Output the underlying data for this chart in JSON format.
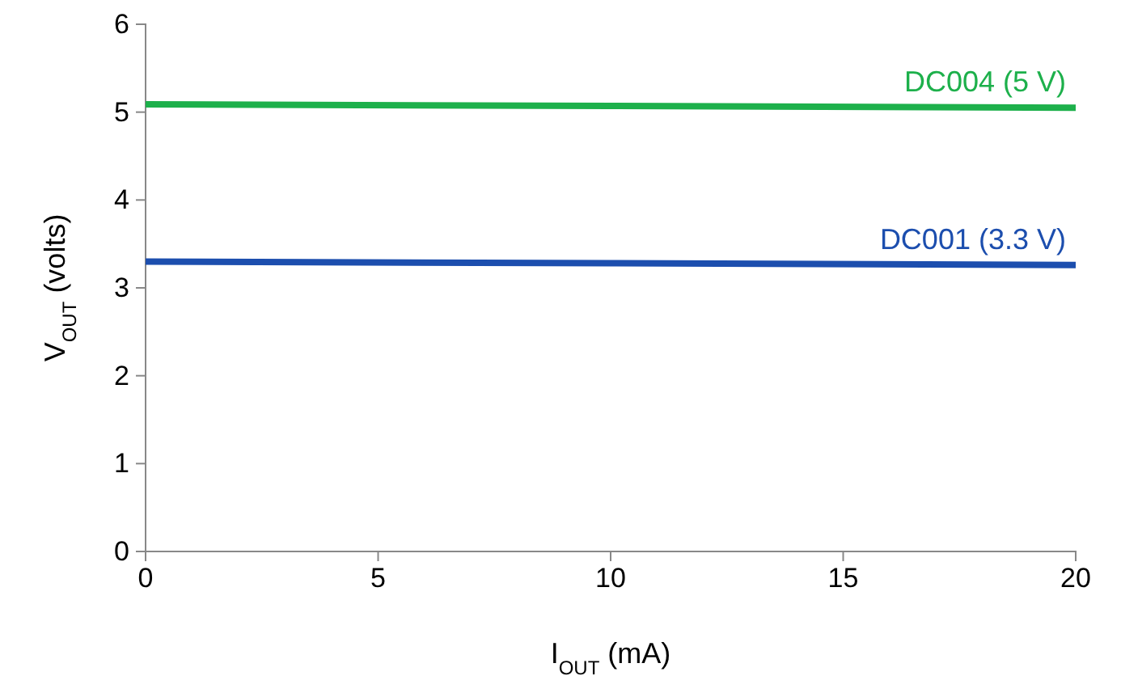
{
  "chart_data": {
    "type": "line",
    "xlabel": "I$_{OUT}$ (mA)",
    "ylabel": "V$_{OUT}$ (volts)",
    "x": [
      0,
      10,
      20
    ],
    "series": [
      {
        "name": "DC004 (5 V)",
        "color": "#1db04b",
        "values": [
          5.09,
          5.07,
          5.05
        ]
      },
      {
        "name": "DC001 (3.3 V)",
        "color": "#1c4eae",
        "values": [
          3.3,
          3.28,
          3.26
        ]
      }
    ],
    "xlim": [
      0,
      20
    ],
    "xticks": [
      0,
      5,
      10,
      15,
      20
    ],
    "ylim": [
      0,
      6
    ],
    "yticks": [
      0,
      1,
      2,
      3,
      4,
      5,
      6
    ],
    "grid": false,
    "marker": "none",
    "line_style": "solid"
  }
}
